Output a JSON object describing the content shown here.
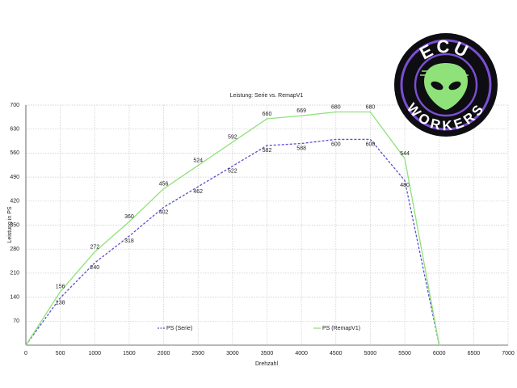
{
  "chart_data": {
    "type": "line",
    "title": "Leistung: Serie vs. RemapV1",
    "x_label": "Drehzahl",
    "y_label": "Leistung in PS",
    "x": [
      0,
      500,
      1000,
      1500,
      2000,
      2500,
      3000,
      3500,
      4000,
      4500,
      5000,
      5500,
      6000
    ],
    "series": [
      {
        "name": "PS (Serie)",
        "color": "#5a4fcf",
        "dashed": true,
        "values": [
          0,
          138,
          240,
          318,
          402,
          462,
          522,
          582,
          588,
          600,
          600,
          480,
          0
        ]
      },
      {
        "name": "PS (RemapV1)",
        "color": "#8fe27a",
        "dashed": false,
        "values": [
          0,
          156,
          272,
          360,
          456,
          524,
          592,
          660,
          669,
          680,
          680,
          544,
          0
        ]
      }
    ],
    "xlim": [
      0,
      7000
    ],
    "xticks": [
      0,
      500,
      1000,
      1500,
      2000,
      2500,
      3000,
      3500,
      4000,
      4500,
      5000,
      5500,
      6000,
      6500,
      7000
    ],
    "ylim": [
      0,
      700
    ],
    "yticks": [
      70,
      140,
      210,
      280,
      350,
      420,
      490,
      560,
      630,
      700
    ],
    "grid": true
  },
  "logo": {
    "top_text": "ECU",
    "bottom_text": "WORKERS"
  }
}
